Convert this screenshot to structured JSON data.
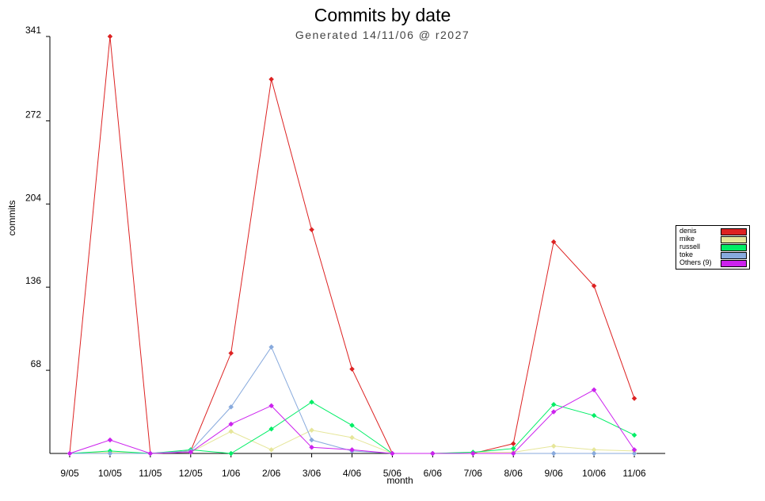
{
  "chart_data": {
    "type": "line",
    "title": "Commits by date",
    "subtitle": "Generated 14/11/06 @ r2027",
    "xlabel": "month",
    "ylabel": "commits",
    "categories": [
      "9/05",
      "10/05",
      "11/05",
      "12/05",
      "1/06",
      "2/06",
      "3/06",
      "4/06",
      "5/06",
      "6/06",
      "7/06",
      "8/06",
      "9/06",
      "10/06",
      "11/06"
    ],
    "ylim": [
      0,
      341
    ],
    "yticks": [
      "68",
      "136",
      "204",
      "272",
      "341"
    ],
    "ytick_values": [
      68,
      136,
      204,
      272,
      341
    ],
    "legend_position": "right",
    "grid": false,
    "series": [
      {
        "name": "denis",
        "color": "#dd2222",
        "values": [
          0,
          341,
          0,
          2,
          82,
          306,
          183,
          69,
          0,
          0,
          0,
          8,
          173,
          137,
          45
        ]
      },
      {
        "name": "mike",
        "color": "#e6e69a",
        "values": [
          0,
          1,
          0,
          1,
          18,
          3,
          19,
          13,
          0,
          0,
          1,
          1,
          6,
          3,
          2
        ]
      },
      {
        "name": "russell",
        "color": "#00ee66",
        "values": [
          0,
          2,
          0,
          3,
          0,
          20,
          42,
          23,
          0,
          0,
          1,
          4,
          40,
          31,
          15
        ]
      },
      {
        "name": "toke",
        "color": "#88aadd",
        "values": [
          0,
          0,
          0,
          2,
          38,
          87,
          11,
          2,
          0,
          0,
          0,
          0,
          0,
          0,
          0
        ]
      },
      {
        "name": "Others (9)",
        "color": "#cc22ee",
        "values": [
          0,
          11,
          0,
          1,
          24,
          39,
          5,
          3,
          0,
          0,
          0,
          0,
          34,
          52,
          3
        ]
      }
    ]
  }
}
